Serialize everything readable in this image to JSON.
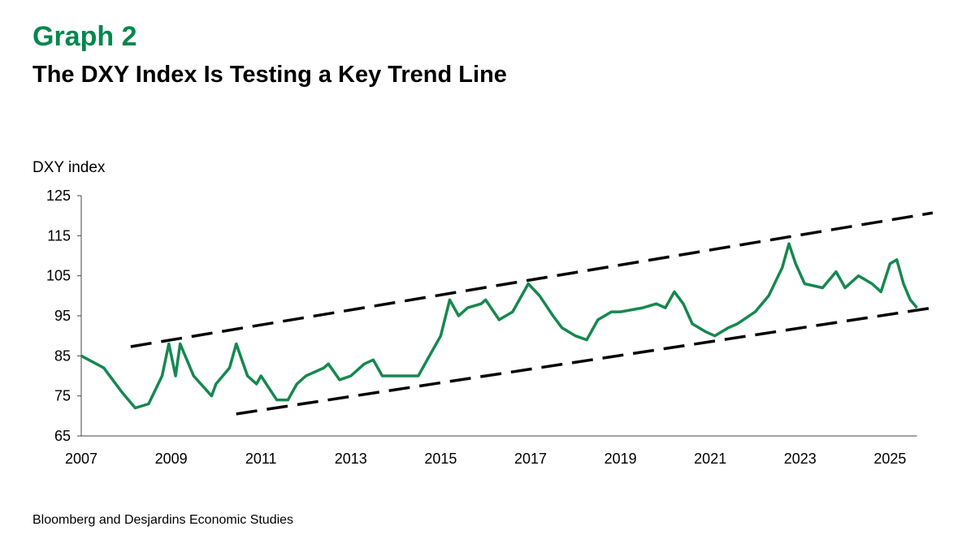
{
  "header": {
    "eyebrow": "Graph 2",
    "title": "The DXY Index Is Testing a Key Trend Line"
  },
  "source": "Bloomberg and Desjardins Economic Studies",
  "colors": {
    "accent": "#00874e",
    "series": "#15884f",
    "trend": "#000000"
  },
  "chart_data": {
    "type": "line",
    "title": "The DXY Index Is Testing a Key Trend Line",
    "ylabel": "DXY index",
    "xlabel": "",
    "ylim": [
      65,
      125
    ],
    "xlim": [
      2007,
      2025.6
    ],
    "yticks": [
      65,
      75,
      85,
      95,
      105,
      115,
      125
    ],
    "xticks": [
      "2007",
      "2009",
      "2011",
      "2013",
      "2015",
      "2017",
      "2019",
      "2021",
      "2023",
      "2025"
    ],
    "grid": false,
    "series": [
      {
        "x": [
          2007.0,
          2007.5,
          2007.9,
          2008.2,
          2008.5,
          2008.8,
          2008.95,
          2009.1,
          2009.2,
          2009.5,
          2009.9,
          2010.0,
          2010.3,
          2010.45,
          2010.7,
          2010.9,
          2011.0,
          2011.35,
          2011.6,
          2011.8,
          2012.0,
          2012.4,
          2012.5,
          2012.75,
          2013.0,
          2013.3,
          2013.5,
          2013.7,
          2014.0,
          2014.3,
          2014.5,
          2014.8,
          2015.0,
          2015.2,
          2015.4,
          2015.6,
          2015.9,
          2016.0,
          2016.3,
          2016.6,
          2016.95,
          2017.2,
          2017.5,
          2017.7,
          2018.0,
          2018.25,
          2018.5,
          2018.8,
          2019.0,
          2019.5,
          2019.8,
          2020.0,
          2020.2,
          2020.4,
          2020.6,
          2020.9,
          2021.1,
          2021.4,
          2021.6,
          2022.0,
          2022.3,
          2022.6,
          2022.75,
          2022.9,
          2023.1,
          2023.5,
          2023.8,
          2024.0,
          2024.3,
          2024.6,
          2024.8,
          2025.0,
          2025.15,
          2025.3,
          2025.45,
          2025.6
        ],
        "values": [
          85,
          82,
          76,
          72,
          73,
          80,
          88,
          80,
          88,
          80,
          75,
          78,
          82,
          88,
          80,
          78,
          80,
          74,
          74,
          78,
          80,
          82,
          83,
          79,
          80,
          83,
          84,
          80,
          80,
          80,
          80,
          86,
          90,
          99,
          95,
          97,
          98,
          99,
          94,
          96,
          103,
          100,
          95,
          92,
          90,
          89,
          94,
          96,
          96,
          97,
          98,
          97,
          101,
          98,
          93,
          91,
          90,
          92,
          93,
          96,
          100,
          107,
          113,
          108,
          103,
          102,
          106,
          102,
          105,
          103,
          101,
          108,
          109,
          103,
          99,
          97
        ]
      }
    ],
    "trend_lines": [
      {
        "style": "dashed",
        "x": [
          2008.1,
          2025.95
        ],
        "values": [
          87.3,
          120.7
        ]
      },
      {
        "style": "dashed",
        "x": [
          2010.45,
          2025.95
        ],
        "values": [
          70.5,
          97.0
        ]
      }
    ]
  }
}
